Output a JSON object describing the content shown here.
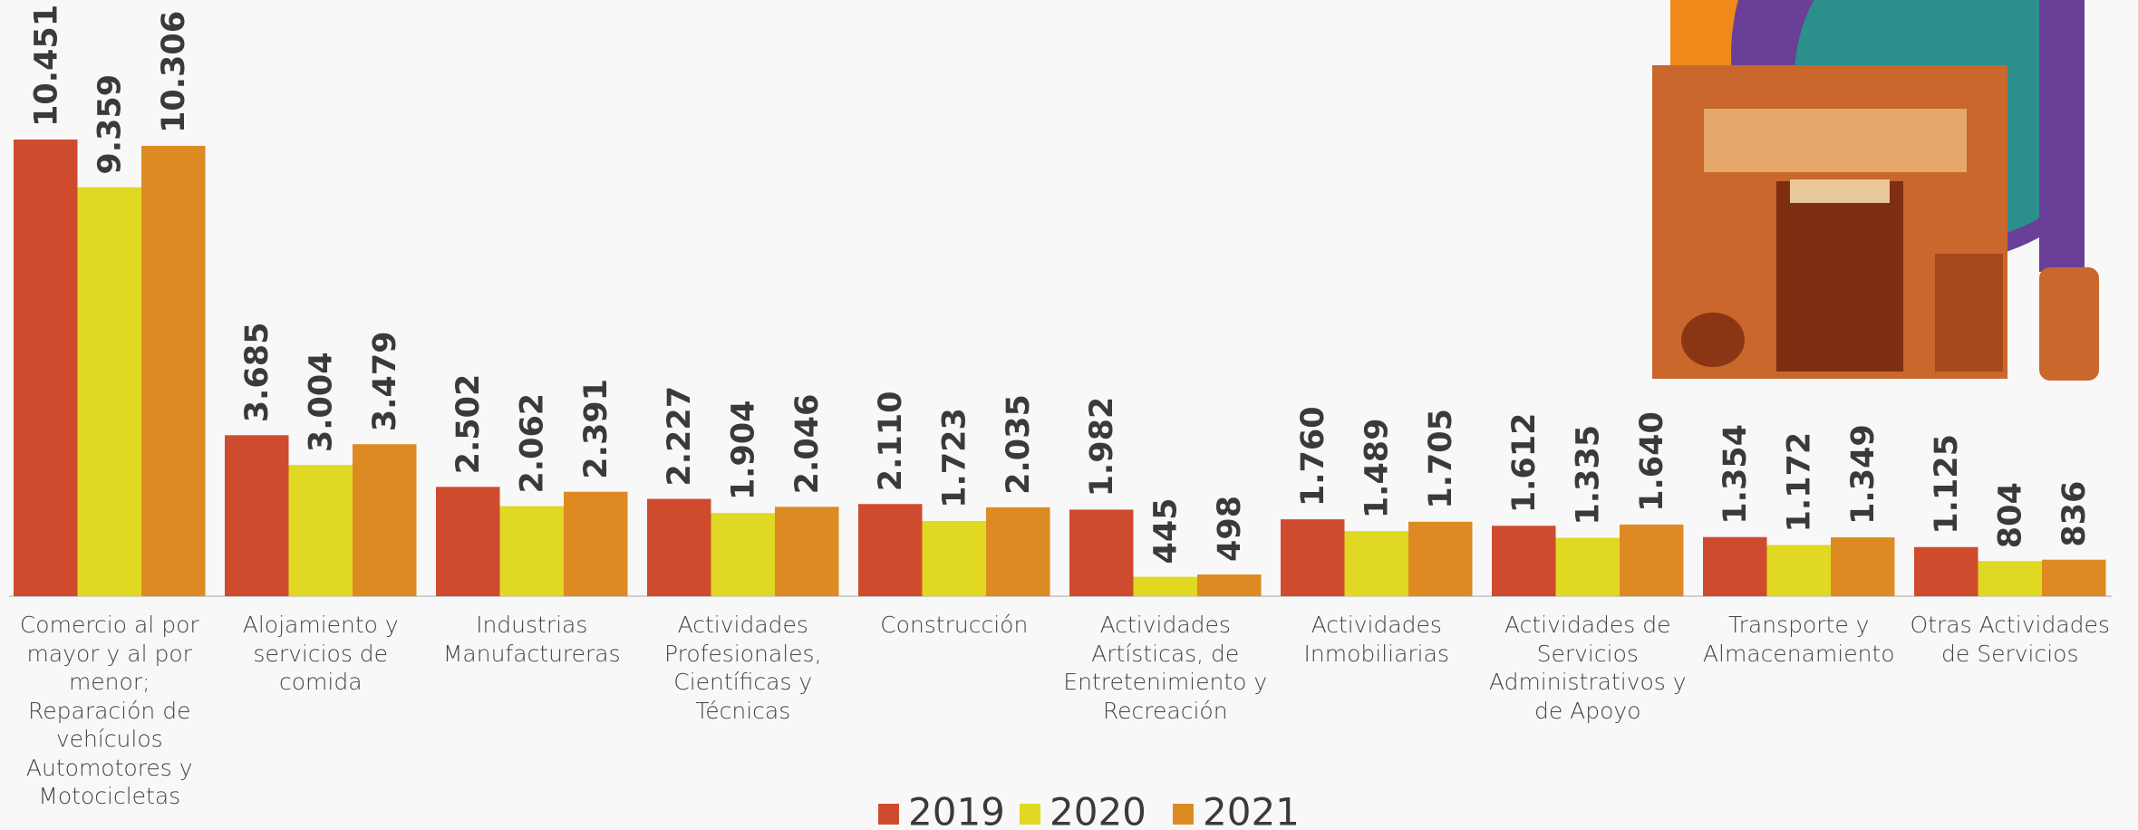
{
  "chart_data": {
    "type": "bar",
    "categories": [
      "Comercio al por mayor y al por menor; Reparación de vehículos Automotores y Motocicletas",
      "Alojamiento y servicios de comida",
      "Industrias Manufactureras",
      "Actividades Profesionales, Científicas y Técnicas",
      "Construcción",
      "Actividades Artísticas, de Entretenimiento y Recreación",
      "Actividades Inmobiliarias",
      "Actividades de Servicios Administrativos y de Apoyo",
      "Transporte y Almacenamiento",
      "Otras Actividades de Servicios"
    ],
    "series": [
      {
        "name": "2019",
        "color": "#cf4b2e",
        "values": [
          10451,
          3685,
          2502,
          2227,
          2110,
          1982,
          1760,
          1612,
          1354,
          1125
        ],
        "value_labels": [
          "10.451",
          "3.685",
          "2.502",
          "2.227",
          "2.110",
          "1.982",
          "1.760",
          "1.612",
          "1.354",
          "1.125"
        ]
      },
      {
        "name": "2020",
        "color": "#e0d822",
        "values": [
          9359,
          3004,
          2062,
          1904,
          1723,
          445,
          1489,
          1335,
          1172,
          804
        ],
        "value_labels": [
          "9.359",
          "3.004",
          "2.062",
          "1.904",
          "1.723",
          "445",
          "1.489",
          "1.335",
          "1.172",
          "804"
        ]
      },
      {
        "name": "2021",
        "color": "#de8a23",
        "values": [
          10306,
          3479,
          2391,
          2046,
          2035,
          498,
          1705,
          1640,
          1349,
          836
        ],
        "value_labels": [
          "10.306",
          "3.479",
          "2.391",
          "2.046",
          "2.035",
          "498",
          "1.705",
          "1.640",
          "1.349",
          "836"
        ]
      }
    ]
  }
}
